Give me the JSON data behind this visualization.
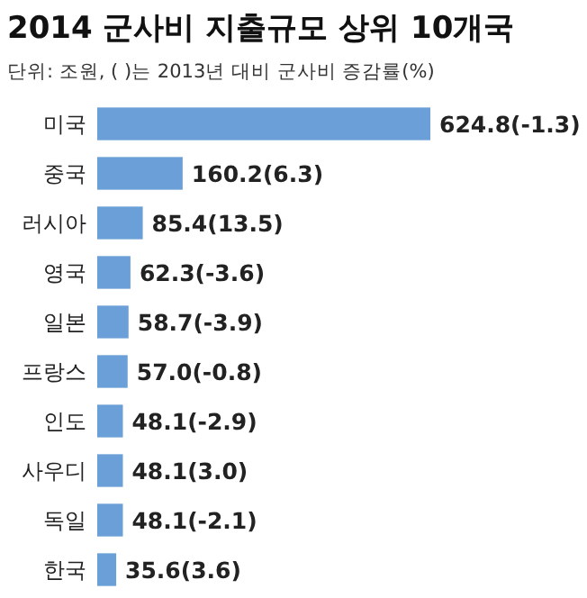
{
  "chart_data": {
    "type": "bar",
    "orientation": "horizontal",
    "title": "2014 군사비 지출규모 상위 10개국",
    "subtitle": "단위: 조원, ( )는 2013년 대비 군사비 증감률(%)",
    "categories": [
      "미국",
      "중국",
      "러시아",
      "영국",
      "일본",
      "프랑스",
      "인도",
      "사우디",
      "독일",
      "한국"
    ],
    "values": [
      624.8,
      160.2,
      85.4,
      62.3,
      58.7,
      57.0,
      48.1,
      48.1,
      48.1,
      35.6
    ],
    "value_labels": [
      "624.8(-1.3)",
      "160.2(6.3)",
      "85.4(13.5)",
      "62.3(-3.6)",
      "58.7(-3.9)",
      "57.0(-0.8)",
      "48.1(-2.9)",
      "48.1(3.0)",
      "48.1(-2.1)",
      "35.6(3.6)"
    ],
    "color": "#6a9fd8"
  }
}
